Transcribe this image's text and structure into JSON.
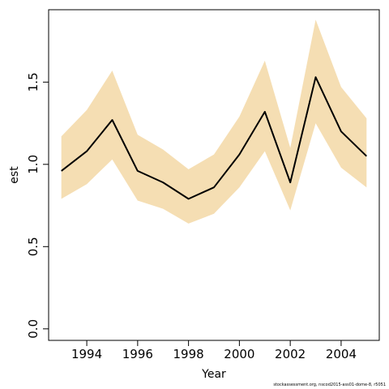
{
  "chart_data": {
    "type": "line",
    "xlabel": "Year",
    "ylabel": "est",
    "xlim": [
      1992.5,
      2005.5
    ],
    "ylim": [
      -0.07,
      1.94
    ],
    "x_ticks": [
      1994,
      1996,
      1998,
      2000,
      2002,
      2004
    ],
    "y_ticks": [
      0.0,
      0.5,
      1.0,
      1.5
    ],
    "x_tick_labels": [
      "1994",
      "1996",
      "1998",
      "2000",
      "2002",
      "2004"
    ],
    "y_tick_labels": [
      "0.0",
      "0.5",
      "1.0",
      "1.5"
    ],
    "x": [
      1993,
      1994,
      1995,
      1996,
      1997,
      1998,
      1999,
      2000,
      2001,
      2002,
      2003,
      2004,
      2005
    ],
    "series": [
      {
        "values": [
          0.96,
          1.08,
          1.27,
          0.96,
          0.89,
          0.79,
          0.86,
          1.06,
          1.32,
          0.89,
          1.53,
          1.2,
          1.05
        ],
        "lower": [
          0.79,
          0.88,
          1.03,
          0.78,
          0.73,
          0.64,
          0.7,
          0.86,
          1.08,
          0.72,
          1.25,
          0.98,
          0.86
        ],
        "upper": [
          1.17,
          1.33,
          1.57,
          1.18,
          1.09,
          0.97,
          1.06,
          1.29,
          1.63,
          1.1,
          1.88,
          1.47,
          1.28
        ],
        "line_color": "#000000",
        "band_color": "#F5DEB3"
      }
    ],
    "grid": false,
    "legend": "none"
  },
  "footnote": "stockassessment.org, nscod2015-ass01-dome-8, r5051"
}
